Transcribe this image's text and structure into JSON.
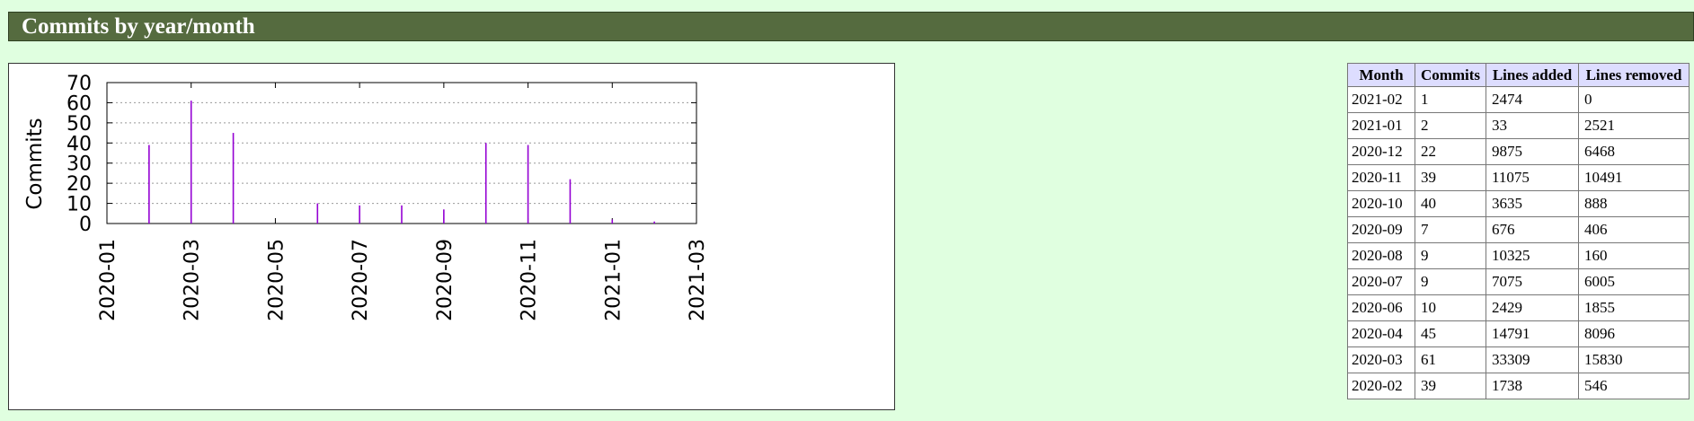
{
  "header": {
    "title": "Commits by year/month"
  },
  "table": {
    "columns": [
      "Month",
      "Commits",
      "Lines added",
      "Lines removed"
    ],
    "rows": [
      [
        "2021-02",
        "1",
        "2474",
        "0"
      ],
      [
        "2021-01",
        "2",
        "33",
        "2521"
      ],
      [
        "2020-12",
        "22",
        "9875",
        "6468"
      ],
      [
        "2020-11",
        "39",
        "11075",
        "10491"
      ],
      [
        "2020-10",
        "40",
        "3635",
        "888"
      ],
      [
        "2020-09",
        "7",
        "676",
        "406"
      ],
      [
        "2020-08",
        "9",
        "10325",
        "160"
      ],
      [
        "2020-07",
        "9",
        "7075",
        "6005"
      ],
      [
        "2020-06",
        "10",
        "2429",
        "1855"
      ],
      [
        "2020-04",
        "45",
        "14791",
        "8096"
      ],
      [
        "2020-03",
        "61",
        "33309",
        "15830"
      ],
      [
        "2020-02",
        "39",
        "1738",
        "546"
      ]
    ]
  },
  "chart_data": {
    "type": "bar",
    "title": "",
    "xlabel": "",
    "ylabel": "Commits",
    "ylim": [
      0,
      70
    ],
    "yticks": [
      0,
      10,
      20,
      30,
      40,
      50,
      60,
      70
    ],
    "xticks": [
      "2020-01",
      "2020-03",
      "2020-05",
      "2020-07",
      "2020-09",
      "2020-11",
      "2021-01",
      "2021-03"
    ],
    "xrange": [
      "2020-01",
      "2021-03"
    ],
    "grid": true,
    "bar_color": "#9400d3",
    "series": [
      {
        "x": [
          "2020-02",
          "2020-03",
          "2020-04",
          "2020-06",
          "2020-07",
          "2020-08",
          "2020-09",
          "2020-10",
          "2020-11",
          "2020-12",
          "2021-01",
          "2021-02"
        ],
        "values": [
          39,
          61,
          45,
          10,
          9,
          9,
          7,
          40,
          39,
          22,
          2,
          1
        ]
      }
    ]
  }
}
